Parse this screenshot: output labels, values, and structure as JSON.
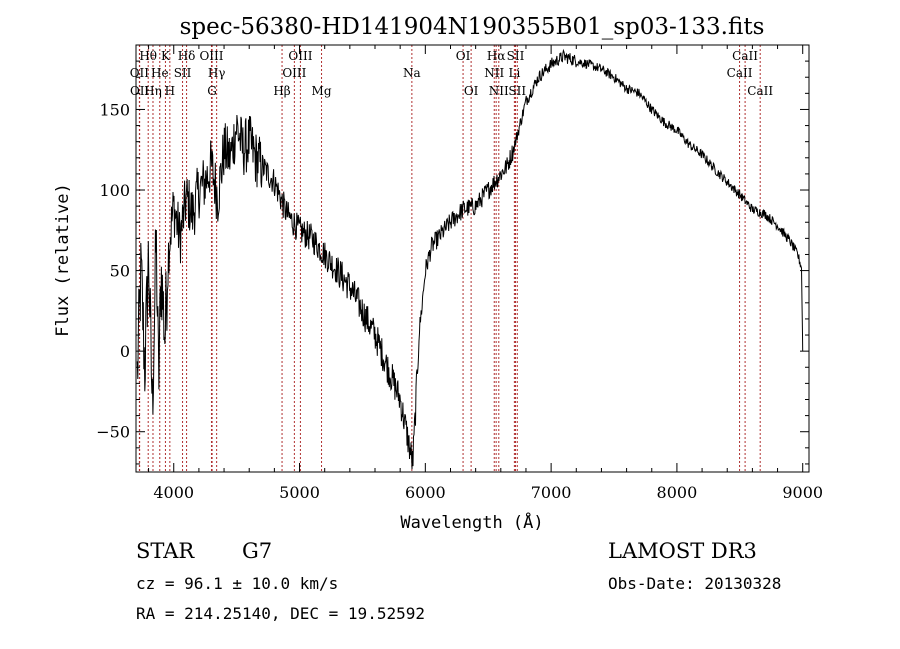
{
  "chart_data": {
    "type": "line",
    "title": "spec-56380-HD141904N190355B01_sp03-133.fits",
    "xlabel": "Wavelength (Å)",
    "ylabel": "Flux (relative)",
    "xlim": [
      3700,
      9050
    ],
    "ylim": [
      -75,
      190
    ],
    "xticks": [
      4000,
      5000,
      6000,
      7000,
      8000,
      9000
    ],
    "yticks": [
      -50,
      0,
      50,
      100,
      150
    ],
    "xtick_labels": [
      "4000",
      "5000",
      "6000",
      "7000",
      "8000",
      "9000"
    ],
    "ytick_labels": [
      "−50",
      "0",
      "50",
      "100",
      "150"
    ],
    "line_color": "#000000",
    "marker_color": "#b03030",
    "series": [
      {
        "name": "flux",
        "anchors": [
          [
            3710,
            -15
          ],
          [
            3740,
            50
          ],
          [
            3770,
            -10
          ],
          [
            3800,
            60
          ],
          [
            3830,
            -35
          ],
          [
            3860,
            70
          ],
          [
            3880,
            -20
          ],
          [
            3900,
            50
          ],
          [
            3930,
            10
          ],
          [
            3960,
            65
          ],
          [
            4000,
            90
          ],
          [
            4050,
            70
          ],
          [
            4100,
            95
          ],
          [
            4150,
            85
          ],
          [
            4200,
            100
          ],
          [
            4250,
            105
          ],
          [
            4300,
            115
          ],
          [
            4350,
            95
          ],
          [
            4400,
            125
          ],
          [
            4450,
            120
          ],
          [
            4500,
            140
          ],
          [
            4550,
            125
          ],
          [
            4600,
            130
          ],
          [
            4650,
            120
          ],
          [
            4700,
            115
          ],
          [
            4750,
            110
          ],
          [
            4800,
            105
          ],
          [
            4850,
            95
          ],
          [
            4900,
            85
          ],
          [
            5000,
            75
          ],
          [
            5100,
            70
          ],
          [
            5200,
            60
          ],
          [
            5300,
            50
          ],
          [
            5400,
            40
          ],
          [
            5500,
            25
          ],
          [
            5600,
            10
          ],
          [
            5700,
            -10
          ],
          [
            5800,
            -30
          ],
          [
            5850,
            -50
          ],
          [
            5900,
            -70
          ],
          [
            5920,
            -40
          ],
          [
            5950,
            10
          ],
          [
            6000,
            50
          ],
          [
            6050,
            65
          ],
          [
            6100,
            70
          ],
          [
            6200,
            80
          ],
          [
            6300,
            88
          ],
          [
            6400,
            90
          ],
          [
            6500,
            100
          ],
          [
            6550,
            105
          ],
          [
            6600,
            110
          ],
          [
            6650,
            115
          ],
          [
            6700,
            125
          ],
          [
            6750,
            140
          ],
          [
            6800,
            155
          ],
          [
            6900,
            170
          ],
          [
            7000,
            178
          ],
          [
            7100,
            183
          ],
          [
            7200,
            180
          ],
          [
            7300,
            178
          ],
          [
            7400,
            175
          ],
          [
            7500,
            170
          ],
          [
            7600,
            163
          ],
          [
            7700,
            160
          ],
          [
            7800,
            150
          ],
          [
            7900,
            142
          ],
          [
            8000,
            137
          ],
          [
            8100,
            128
          ],
          [
            8200,
            122
          ],
          [
            8300,
            113
          ],
          [
            8400,
            105
          ],
          [
            8500,
            97
          ],
          [
            8600,
            88
          ],
          [
            8700,
            85
          ],
          [
            8800,
            78
          ],
          [
            8900,
            68
          ],
          [
            8960,
            60
          ],
          [
            8990,
            52
          ],
          [
            9000,
            0
          ]
        ]
      }
    ],
    "lines": [
      {
        "name": "OII",
        "wl": 3727,
        "row": 2
      },
      {
        "name": "OII",
        "wl": 3729,
        "row": 3
      },
      {
        "name": "Hθ",
        "wl": 3797,
        "row": 1
      },
      {
        "name": "Hη",
        "wl": 3835,
        "row": 3
      },
      {
        "name": "He",
        "wl": 3889,
        "row": 2
      },
      {
        "name": "K",
        "wl": 3934,
        "row": 1
      },
      {
        "name": "SII",
        "wl": 4070,
        "row": 2
      },
      {
        "name": "H",
        "wl": 3969,
        "row": 3
      },
      {
        "name": "Hδ",
        "wl": 4102,
        "row": 1
      },
      {
        "name": "OIII",
        "wl": 4300,
        "row": 1
      },
      {
        "name": "Hγ",
        "wl": 4341,
        "row": 2
      },
      {
        "name": "G",
        "wl": 4305,
        "row": 3
      },
      {
        "name": "Hβ",
        "wl": 4861,
        "row": 3
      },
      {
        "name": "OIII",
        "wl": 4959,
        "row": 2
      },
      {
        "name": "OIII",
        "wl": 5007,
        "row": 1
      },
      {
        "name": "Mg",
        "wl": 5175,
        "row": 3
      },
      {
        "name": "Na",
        "wl": 5893,
        "row": 2
      },
      {
        "name": "OI",
        "wl": 6300,
        "row": 1
      },
      {
        "name": "OI",
        "wl": 6364,
        "row": 3
      },
      {
        "name": "Hα",
        "wl": 6563,
        "row": 1
      },
      {
        "name": "NII",
        "wl": 6548,
        "row": 2
      },
      {
        "name": "NII",
        "wl": 6584,
        "row": 3
      },
      {
        "name": "SII",
        "wl": 6717,
        "row": 1
      },
      {
        "name": "Li",
        "wl": 6708,
        "row": 2
      },
      {
        "name": "SII",
        "wl": 6731,
        "row": 3
      },
      {
        "name": "CaII",
        "wl": 8542,
        "row": 1
      },
      {
        "name": "CaII",
        "wl": 8498,
        "row": 2
      },
      {
        "name": "CaII",
        "wl": 8662,
        "row": 3
      }
    ]
  },
  "info": {
    "object_class": "STAR",
    "subclass": "G7",
    "survey": "LAMOST DR3",
    "cz": "cz = 96.1 ± 10.0 km/s",
    "obs_date": "Obs-Date: 20130328",
    "coords": "RA = 214.25140, DEC =  19.52592"
  }
}
